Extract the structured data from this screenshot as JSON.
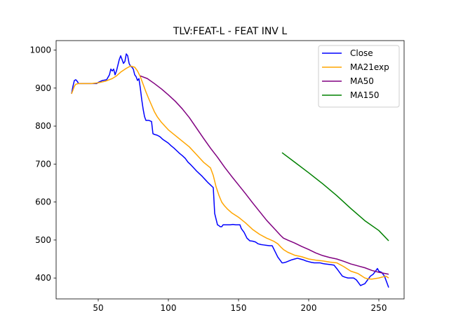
{
  "chart_data": {
    "type": "line",
    "title": "TLV:FEAT-L - FEAT INV L",
    "xlabel": "",
    "ylabel": "",
    "xlim": [
      20,
      268
    ],
    "ylim": [
      345,
      1025
    ],
    "xticks": [
      50,
      100,
      150,
      200,
      250
    ],
    "yticks": [
      400,
      500,
      600,
      700,
      800,
      900,
      1000
    ],
    "grid": false,
    "legend_position": "top-right",
    "series": [
      {
        "name": "Close",
        "color": "#0000ff",
        "x": [
          31,
          32,
          33,
          34,
          35,
          36,
          40,
          45,
          49,
          50,
          53,
          56,
          58,
          59,
          60,
          61,
          62,
          63,
          64,
          65,
          66,
          67,
          68,
          69,
          70,
          71,
          72,
          73,
          74,
          75,
          76,
          77,
          78,
          79,
          80,
          81,
          82,
          83,
          84,
          85,
          86,
          88,
          89,
          90,
          92,
          94,
          96,
          98,
          100,
          102,
          104,
          106,
          108,
          110,
          112,
          114,
          116,
          118,
          120,
          122,
          124,
          126,
          128,
          130,
          132,
          133,
          134,
          135,
          136,
          137,
          138,
          139,
          140,
          142,
          144,
          146,
          148,
          150,
          151,
          152,
          154,
          156,
          158,
          160,
          162,
          164,
          166,
          168,
          170,
          172,
          174,
          176,
          178,
          180,
          181,
          182,
          184,
          186,
          188,
          190,
          192,
          194,
          196,
          198,
          200,
          202,
          204,
          206,
          208,
          210,
          212,
          214,
          216,
          218,
          220,
          222,
          224,
          226,
          228,
          230,
          232,
          234,
          236,
          237,
          238,
          240,
          242,
          244,
          246,
          248,
          249,
          250,
          252,
          254,
          256,
          257
        ],
        "y": [
          885,
          905,
          920,
          922,
          918,
          912,
          912,
          912,
          912,
          915,
          920,
          922,
          935,
          950,
          945,
          950,
          935,
          945,
          960,
          975,
          985,
          975,
          965,
          970,
          990,
          985,
          965,
          958,
          955,
          950,
          935,
          930,
          920,
          925,
          900,
          870,
          845,
          825,
          815,
          815,
          815,
          812,
          780,
          778,
          776,
          772,
          765,
          760,
          755,
          748,
          742,
          735,
          728,
          722,
          715,
          705,
          698,
          690,
          682,
          675,
          668,
          660,
          652,
          645,
          638,
          570,
          555,
          540,
          538,
          535,
          535,
          540,
          540,
          540,
          540,
          541,
          540,
          540,
          540,
          530,
          520,
          505,
          498,
          497,
          495,
          490,
          488,
          487,
          486,
          485,
          485,
          470,
          455,
          445,
          440,
          440,
          442,
          445,
          448,
          450,
          452,
          450,
          448,
          445,
          443,
          441,
          440,
          440,
          440,
          438,
          437,
          436,
          435,
          434,
          425,
          415,
          405,
          402,
          400,
          400,
          400,
          395,
          385,
          380,
          382,
          385,
          395,
          405,
          410,
          420,
          425,
          418,
          415,
          405,
          385,
          375
        ]
      },
      {
        "name": "MA21exp",
        "color": "#ffa500",
        "x": [
          31,
          32,
          33,
          34,
          36,
          40,
          45,
          50,
          55,
          60,
          63,
          66,
          70,
          73,
          76,
          78,
          80,
          82,
          84,
          86,
          88,
          90,
          92,
          95,
          100,
          105,
          110,
          115,
          120,
          125,
          130,
          132,
          134,
          136,
          138,
          140,
          142,
          145,
          150,
          155,
          160,
          165,
          170,
          175,
          178,
          180,
          182,
          185,
          190,
          195,
          200,
          205,
          210,
          215,
          220,
          225,
          230,
          235,
          238,
          240,
          242,
          245,
          250,
          255,
          257
        ],
        "y": [
          885,
          895,
          905,
          910,
          912,
          912,
          912,
          914,
          918,
          925,
          932,
          942,
          952,
          958,
          955,
          945,
          930,
          910,
          890,
          872,
          855,
          838,
          825,
          810,
          790,
          775,
          760,
          745,
          725,
          705,
          690,
          670,
          640,
          618,
          600,
          590,
          582,
          572,
          560,
          545,
          528,
          515,
          505,
          497,
          490,
          482,
          475,
          468,
          460,
          456,
          450,
          447,
          445,
          442,
          440,
          430,
          418,
          412,
          405,
          400,
          398,
          397,
          400,
          405,
          400
        ]
      },
      {
        "name": "MA50",
        "color": "#800080",
        "x": [
          80,
          85,
          90,
          95,
          100,
          105,
          110,
          115,
          120,
          125,
          130,
          135,
          140,
          145,
          150,
          155,
          160,
          165,
          170,
          175,
          180,
          182,
          185,
          190,
          195,
          200,
          205,
          210,
          215,
          220,
          225,
          230,
          235,
          240,
          245,
          250,
          257
        ],
        "y": [
          932,
          925,
          912,
          898,
          882,
          865,
          845,
          822,
          795,
          768,
          742,
          718,
          692,
          668,
          645,
          622,
          598,
          575,
          552,
          532,
          512,
          505,
          500,
          492,
          483,
          475,
          466,
          459,
          454,
          450,
          444,
          437,
          432,
          427,
          420,
          415,
          410
        ]
      },
      {
        "name": "MA150",
        "color": "#008000",
        "x": [
          181,
          190,
          200,
          210,
          220,
          230,
          240,
          250,
          257
        ],
        "y": [
          730,
          705,
          677,
          648,
          617,
          583,
          551,
          525,
          498
        ]
      }
    ]
  }
}
